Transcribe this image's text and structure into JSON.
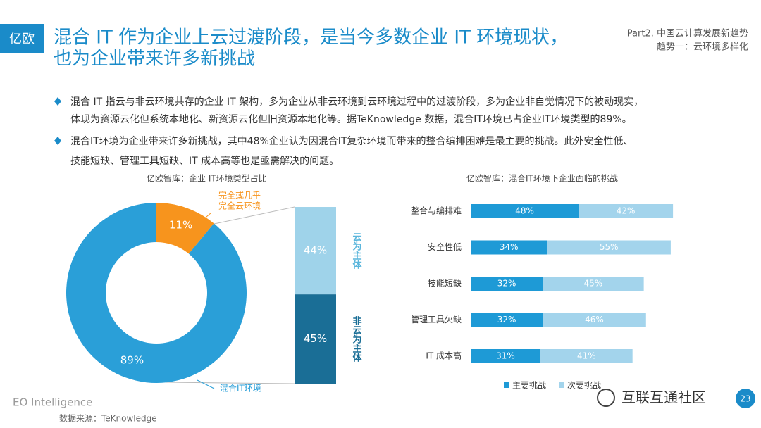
{
  "logo": "亿欧",
  "header": {
    "title_lines": [
      "混合 IT 作为企业上云过渡阶段，是当今多数企业 IT 环境现状，",
      "也为企业带来许多新挑战"
    ],
    "section": "Part2. 中国云计算发展新趋势",
    "subsection": "趋势一：云环境多样化"
  },
  "bullets": [
    [
      "混合 IT 指云与非云环境共存的企业 IT 架构，多为企业从非云环境到云环境过程中的过渡阶段，多为企业非自觉情况下的被动现实，",
      "体现为资源云化但系统本地化、新资源云化但旧资源本地化等。据TeKnowledge 数据，混合IT环境已占企业IT环境类型的89%。"
    ],
    [
      "混合IT环境为企业带来许多新挑战，其中48%企业认为因混合IT复杂环境而带来的整合编排困难是最主要的挑战。此外安全性低、",
      "技能短缺、管理工具短缺、IT 成本高等也是亟需解决的问题。"
    ]
  ],
  "chart_data": [
    {
      "type": "pie",
      "donut": true,
      "title": "亿欧智库：企业 IT环境类型占比",
      "categories": [
        "完全或几乎\n完全云环境",
        "混合IT环境"
      ],
      "values": [
        11,
        89
      ],
      "value_labels": [
        "11%",
        "89%"
      ],
      "colors": [
        "#f7941d",
        "#2a9fd8"
      ]
    },
    {
      "type": "stacked_column",
      "categories": [
        "云为主体",
        "非云为主体"
      ],
      "values": [
        44,
        45
      ],
      "value_labels": [
        "44%",
        "45%"
      ],
      "colors": [
        "#9fd3ea",
        "#1a6e96"
      ]
    },
    {
      "type": "bar",
      "orientation": "horizontal",
      "stacked": true,
      "title": "亿欧智库：混合IT环境下企业面临的挑战",
      "categories": [
        "整合与编排难",
        "安全性低",
        "技能短缺",
        "管理工具欠缺",
        "IT 成本高"
      ],
      "series": [
        {
          "name": "主要挑战",
          "color": "#1e9ad6",
          "values": [
            48,
            34,
            32,
            32,
            31
          ],
          "value_labels": [
            "48%",
            "34%",
            "32%",
            "32%",
            "31%"
          ]
        },
        {
          "name": "次要挑战",
          "color": "#a3d4ec",
          "values": [
            42,
            55,
            45,
            46,
            41
          ],
          "value_labels": [
            "42%",
            "55%",
            "45%",
            "46%",
            "41%"
          ]
        }
      ]
    }
  ],
  "footer": {
    "brand": "EO Intelligence",
    "source": "数据来源：TeKnowledge",
    "watermark": "互联互通社区",
    "page": 23
  }
}
